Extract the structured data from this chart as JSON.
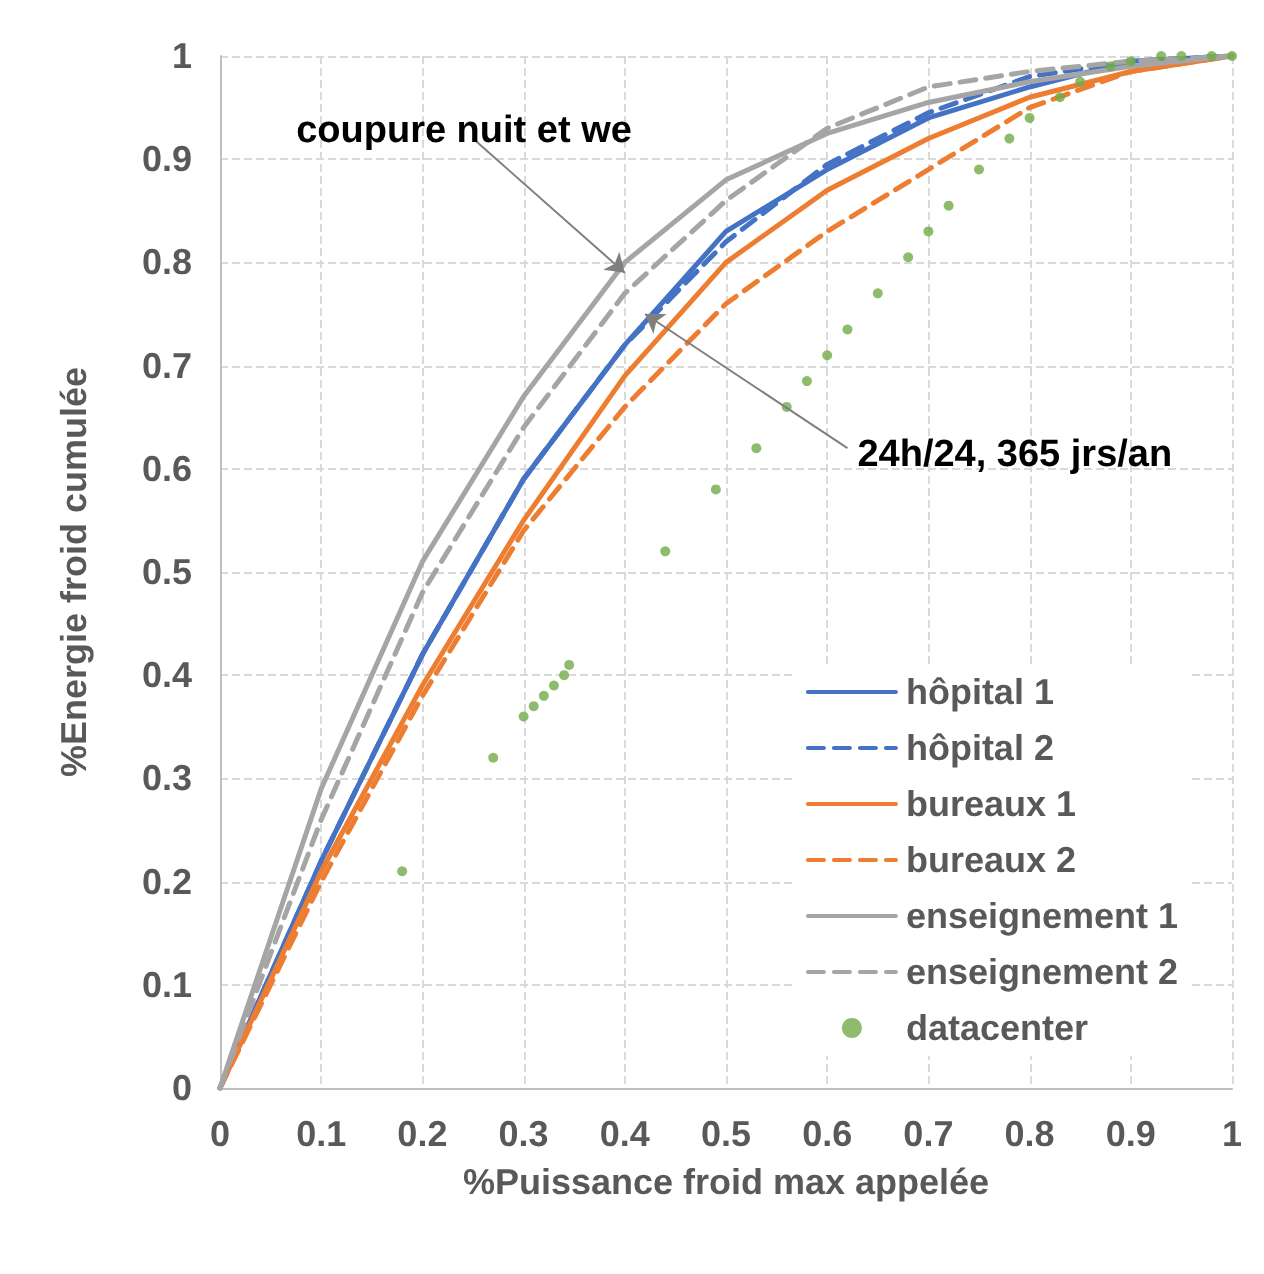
{
  "chart_data": {
    "type": "line",
    "xlabel": "%Puissance froid max appelée",
    "ylabel": "%Energie froid cumulée",
    "xlim": [
      0,
      1
    ],
    "ylim": [
      0,
      1
    ],
    "xticks": [
      0,
      0.1,
      0.2,
      0.3,
      0.4,
      0.5,
      0.6,
      0.7,
      0.8,
      0.9,
      1
    ],
    "yticks": [
      0,
      0.1,
      0.2,
      0.3,
      0.4,
      0.5,
      0.6,
      0.7,
      0.8,
      0.9,
      1
    ],
    "grid": true,
    "legend": "bottom right",
    "marker": "none",
    "x": [
      0,
      0.1,
      0.2,
      0.3,
      0.4,
      0.5,
      0.6,
      0.7,
      0.8,
      0.9,
      1
    ],
    "annotations": [
      {
        "text": "coupure nuit et we",
        "x": 0.4,
        "y": 0.79
      },
      {
        "text": "24h/24, 365 jrs/an",
        "x": 0.42,
        "y": 0.75
      }
    ],
    "series": [
      {
        "name": "hôpital 1",
        "color": "#4472c4",
        "line_style": "solid",
        "values": [
          0,
          0.22,
          0.42,
          0.59,
          0.72,
          0.83,
          0.89,
          0.94,
          0.97,
          0.995,
          1
        ]
      },
      {
        "name": "hôpital 2",
        "color": "#4472c4",
        "line_style": "dashed",
        "values": [
          0,
          0.22,
          0.42,
          0.59,
          0.72,
          0.82,
          0.895,
          0.945,
          0.98,
          0.995,
          1
        ]
      },
      {
        "name": "bureaux 1",
        "color": "#ed7d31",
        "line_style": "solid",
        "values": [
          0,
          0.21,
          0.39,
          0.55,
          0.69,
          0.8,
          0.87,
          0.92,
          0.96,
          0.985,
          1
        ]
      },
      {
        "name": "bureaux 2",
        "color": "#ed7d31",
        "line_style": "dashed",
        "values": [
          0,
          0.2,
          0.38,
          0.54,
          0.66,
          0.76,
          0.83,
          0.89,
          0.95,
          0.985,
          1
        ]
      },
      {
        "name": "enseignement 1",
        "color": "#a5a5a5",
        "line_style": "solid",
        "values": [
          0,
          0.29,
          0.51,
          0.67,
          0.8,
          0.88,
          0.925,
          0.955,
          0.975,
          0.99,
          1
        ]
      },
      {
        "name": "enseignement 2",
        "color": "#a5a5a5",
        "line_style": "dashed",
        "values": [
          0,
          0.26,
          0.48,
          0.64,
          0.77,
          0.86,
          0.93,
          0.97,
          0.985,
          0.995,
          1
        ]
      },
      {
        "name": "datacenter",
        "type": "scatter",
        "color": "#70ad47",
        "marker": "circle",
        "x": [
          0.18,
          0.27,
          0.3,
          0.31,
          0.32,
          0.33,
          0.34,
          0.345,
          0.44,
          0.49,
          0.53,
          0.56,
          0.58,
          0.6,
          0.62,
          0.65,
          0.68,
          0.7,
          0.72,
          0.75,
          0.78,
          0.8,
          0.83,
          0.85,
          0.88,
          0.9,
          0.93,
          0.95,
          0.98,
          1
        ],
        "values": [
          0.21,
          0.32,
          0.36,
          0.37,
          0.38,
          0.39,
          0.4,
          0.41,
          0.52,
          0.58,
          0.62,
          0.66,
          0.685,
          0.71,
          0.735,
          0.77,
          0.805,
          0.83,
          0.855,
          0.89,
          0.92,
          0.94,
          0.96,
          0.975,
          0.99,
          0.995,
          1,
          1,
          1,
          1
        ]
      }
    ]
  }
}
